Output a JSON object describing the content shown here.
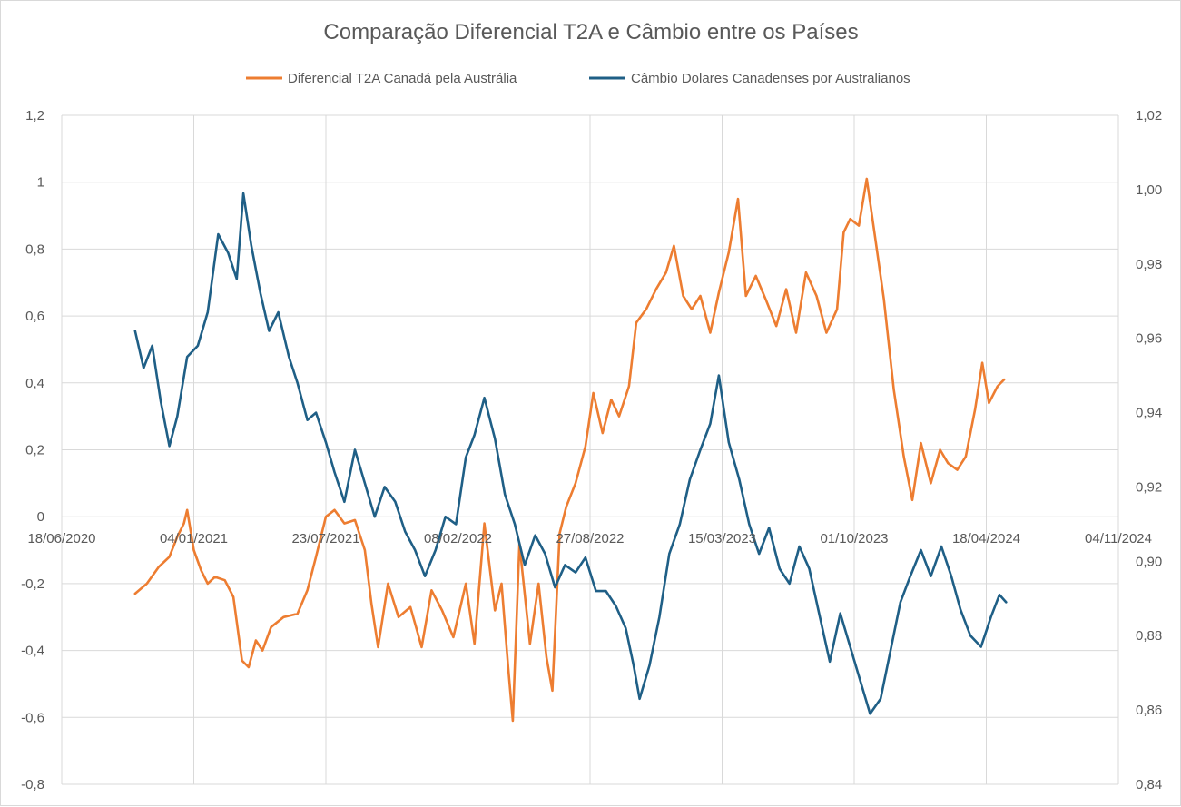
{
  "chart_data": {
    "type": "line",
    "title": "Comparação Diferencial T2A e Câmbio entre os Países",
    "legend_position": "top",
    "grid": true,
    "x_axis": {
      "type": "date",
      "range": [
        "2020-06-18",
        "2024-11-04"
      ],
      "tick_labels": [
        "18/06/2020",
        "04/01/2021",
        "23/07/2021",
        "08/02/2022",
        "27/08/2022",
        "15/03/2023",
        "01/10/2023",
        "18/04/2024",
        "04/11/2024"
      ]
    },
    "y_axis_left": {
      "range": [
        -0.8,
        1.2
      ],
      "tick_labels": [
        "-0,8",
        "-0,6",
        "-0,4",
        "-0,2",
        "0",
        "0,2",
        "0,4",
        "0,6",
        "0,8",
        "1",
        "1,2"
      ]
    },
    "y_axis_right": {
      "range": [
        0.84,
        1.02
      ],
      "tick_labels": [
        "0,84",
        "0,86",
        "0,88",
        "0,90",
        "0,92",
        "0,94",
        "0,96",
        "0,98",
        "1,00",
        "1,02"
      ]
    },
    "series": [
      {
        "name": "Diferencial T2A Canadá pela Austrália",
        "color": "#ED7D31",
        "axis": "left",
        "points": [
          [
            "2020-10-07",
            -0.23
          ],
          [
            "2020-10-25",
            -0.2
          ],
          [
            "2020-11-12",
            -0.15
          ],
          [
            "2020-11-28",
            -0.12
          ],
          [
            "2020-12-10",
            -0.06
          ],
          [
            "2020-12-20",
            -0.02
          ],
          [
            "2020-12-25",
            0.02
          ],
          [
            "2021-01-04",
            -0.1
          ],
          [
            "2021-01-15",
            -0.16
          ],
          [
            "2021-01-25",
            -0.2
          ],
          [
            "2021-02-05",
            -0.18
          ],
          [
            "2021-02-20",
            -0.19
          ],
          [
            "2021-03-05",
            -0.24
          ],
          [
            "2021-03-18",
            -0.43
          ],
          [
            "2021-03-28",
            -0.45
          ],
          [
            "2021-04-08",
            -0.37
          ],
          [
            "2021-04-18",
            -0.4
          ],
          [
            "2021-05-01",
            -0.33
          ],
          [
            "2021-05-20",
            -0.3
          ],
          [
            "2021-06-10",
            -0.29
          ],
          [
            "2021-06-25",
            -0.22
          ],
          [
            "2021-07-08",
            -0.12
          ],
          [
            "2021-07-23",
            0.0
          ],
          [
            "2021-08-05",
            0.02
          ],
          [
            "2021-08-20",
            -0.02
          ],
          [
            "2021-09-05",
            -0.01
          ],
          [
            "2021-09-20",
            -0.1
          ],
          [
            "2021-09-30",
            -0.26
          ],
          [
            "2021-10-10",
            -0.39
          ],
          [
            "2021-10-25",
            -0.2
          ],
          [
            "2021-11-10",
            -0.3
          ],
          [
            "2021-11-28",
            -0.27
          ],
          [
            "2021-12-15",
            -0.39
          ],
          [
            "2021-12-30",
            -0.22
          ],
          [
            "2022-01-15",
            -0.28
          ],
          [
            "2022-02-01",
            -0.36
          ],
          [
            "2022-02-20",
            -0.2
          ],
          [
            "2022-03-05",
            -0.38
          ],
          [
            "2022-03-20",
            -0.02
          ],
          [
            "2022-04-05",
            -0.28
          ],
          [
            "2022-04-15",
            -0.2
          ],
          [
            "2022-04-25",
            -0.45
          ],
          [
            "2022-05-02",
            -0.61
          ],
          [
            "2022-05-12",
            -0.08
          ],
          [
            "2022-05-28",
            -0.38
          ],
          [
            "2022-06-10",
            -0.2
          ],
          [
            "2022-06-22",
            -0.42
          ],
          [
            "2022-07-01",
            -0.52
          ],
          [
            "2022-07-12",
            -0.05
          ],
          [
            "2022-07-22",
            0.03
          ],
          [
            "2022-08-05",
            0.1
          ],
          [
            "2022-08-20",
            0.21
          ],
          [
            "2022-09-01",
            0.37
          ],
          [
            "2022-09-15",
            0.25
          ],
          [
            "2022-09-28",
            0.35
          ],
          [
            "2022-10-10",
            0.3
          ],
          [
            "2022-10-25",
            0.39
          ],
          [
            "2022-11-05",
            0.58
          ],
          [
            "2022-11-20",
            0.62
          ],
          [
            "2022-12-05",
            0.68
          ],
          [
            "2022-12-20",
            0.73
          ],
          [
            "2023-01-01",
            0.81
          ],
          [
            "2023-01-15",
            0.66
          ],
          [
            "2023-01-28",
            0.62
          ],
          [
            "2023-02-10",
            0.66
          ],
          [
            "2023-02-25",
            0.55
          ],
          [
            "2023-03-10",
            0.67
          ],
          [
            "2023-03-25",
            0.79
          ],
          [
            "2023-04-08",
            0.95
          ],
          [
            "2023-04-20",
            0.66
          ],
          [
            "2023-05-05",
            0.72
          ],
          [
            "2023-05-20",
            0.65
          ],
          [
            "2023-06-05",
            0.57
          ],
          [
            "2023-06-20",
            0.68
          ],
          [
            "2023-07-05",
            0.55
          ],
          [
            "2023-07-20",
            0.73
          ],
          [
            "2023-08-05",
            0.66
          ],
          [
            "2023-08-20",
            0.55
          ],
          [
            "2023-09-05",
            0.62
          ],
          [
            "2023-09-15",
            0.85
          ],
          [
            "2023-09-25",
            0.89
          ],
          [
            "2023-10-08",
            0.87
          ],
          [
            "2023-10-20",
            1.01
          ],
          [
            "2023-11-02",
            0.83
          ],
          [
            "2023-11-15",
            0.65
          ],
          [
            "2023-11-30",
            0.38
          ],
          [
            "2023-12-15",
            0.18
          ],
          [
            "2023-12-28",
            0.05
          ],
          [
            "2024-01-10",
            0.22
          ],
          [
            "2024-01-25",
            0.1
          ],
          [
            "2024-02-08",
            0.2
          ],
          [
            "2024-02-20",
            0.16
          ],
          [
            "2024-03-05",
            0.14
          ],
          [
            "2024-03-18",
            0.18
          ],
          [
            "2024-04-01",
            0.32
          ],
          [
            "2024-04-12",
            0.46
          ],
          [
            "2024-04-22",
            0.34
          ],
          [
            "2024-05-05",
            0.39
          ],
          [
            "2024-05-15",
            0.41
          ]
        ]
      },
      {
        "name": "Câmbio Dolares Canadenses por Australianos",
        "color": "#1F5F86",
        "axis": "right",
        "points": [
          [
            "2020-10-07",
            0.962
          ],
          [
            "2020-10-20",
            0.952
          ],
          [
            "2020-11-02",
            0.958
          ],
          [
            "2020-11-15",
            0.943
          ],
          [
            "2020-11-28",
            0.931
          ],
          [
            "2020-12-10",
            0.939
          ],
          [
            "2020-12-25",
            0.955
          ],
          [
            "2021-01-10",
            0.958
          ],
          [
            "2021-01-25",
            0.967
          ],
          [
            "2021-02-10",
            0.988
          ],
          [
            "2021-02-25",
            0.983
          ],
          [
            "2021-03-10",
            0.976
          ],
          [
            "2021-03-20",
            0.999
          ],
          [
            "2021-04-01",
            0.985
          ],
          [
            "2021-04-15",
            0.972
          ],
          [
            "2021-04-28",
            0.962
          ],
          [
            "2021-05-12",
            0.967
          ],
          [
            "2021-05-28",
            0.955
          ],
          [
            "2021-06-10",
            0.948
          ],
          [
            "2021-06-25",
            0.938
          ],
          [
            "2021-07-08",
            0.94
          ],
          [
            "2021-07-23",
            0.932
          ],
          [
            "2021-08-05",
            0.924
          ],
          [
            "2021-08-20",
            0.916
          ],
          [
            "2021-09-05",
            0.93
          ],
          [
            "2021-09-20",
            0.921
          ],
          [
            "2021-10-05",
            0.912
          ],
          [
            "2021-10-20",
            0.92
          ],
          [
            "2021-11-05",
            0.916
          ],
          [
            "2021-11-20",
            0.908
          ],
          [
            "2021-12-05",
            0.903
          ],
          [
            "2021-12-20",
            0.896
          ],
          [
            "2022-01-05",
            0.903
          ],
          [
            "2022-01-20",
            0.912
          ],
          [
            "2022-02-05",
            0.91
          ],
          [
            "2022-02-20",
            0.928
          ],
          [
            "2022-03-05",
            0.934
          ],
          [
            "2022-03-20",
            0.944
          ],
          [
            "2022-04-05",
            0.933
          ],
          [
            "2022-04-20",
            0.918
          ],
          [
            "2022-05-05",
            0.91
          ],
          [
            "2022-05-20",
            0.899
          ],
          [
            "2022-06-05",
            0.907
          ],
          [
            "2022-06-20",
            0.902
          ],
          [
            "2022-07-05",
            0.893
          ],
          [
            "2022-07-20",
            0.899
          ],
          [
            "2022-08-05",
            0.897
          ],
          [
            "2022-08-20",
            0.901
          ],
          [
            "2022-09-05",
            0.892
          ],
          [
            "2022-09-20",
            0.892
          ],
          [
            "2022-10-05",
            0.888
          ],
          [
            "2022-10-20",
            0.882
          ],
          [
            "2022-11-01",
            0.872
          ],
          [
            "2022-11-10",
            0.863
          ],
          [
            "2022-11-25",
            0.872
          ],
          [
            "2022-12-10",
            0.885
          ],
          [
            "2022-12-25",
            0.902
          ],
          [
            "2023-01-10",
            0.91
          ],
          [
            "2023-01-25",
            0.922
          ],
          [
            "2023-02-10",
            0.93
          ],
          [
            "2023-02-25",
            0.937
          ],
          [
            "2023-03-10",
            0.95
          ],
          [
            "2023-03-25",
            0.932
          ],
          [
            "2023-04-10",
            0.922
          ],
          [
            "2023-04-25",
            0.91
          ],
          [
            "2023-05-10",
            0.902
          ],
          [
            "2023-05-25",
            0.909
          ],
          [
            "2023-06-10",
            0.898
          ],
          [
            "2023-06-25",
            0.894
          ],
          [
            "2023-07-10",
            0.904
          ],
          [
            "2023-07-25",
            0.898
          ],
          [
            "2023-08-10",
            0.885
          ],
          [
            "2023-08-25",
            0.873
          ],
          [
            "2023-09-10",
            0.886
          ],
          [
            "2023-09-25",
            0.877
          ],
          [
            "2023-10-10",
            0.868
          ],
          [
            "2023-10-25",
            0.859
          ],
          [
            "2023-11-10",
            0.863
          ],
          [
            "2023-11-25",
            0.876
          ],
          [
            "2023-12-10",
            0.889
          ],
          [
            "2023-12-25",
            0.896
          ],
          [
            "2024-01-10",
            0.903
          ],
          [
            "2024-01-25",
            0.896
          ],
          [
            "2024-02-10",
            0.904
          ],
          [
            "2024-02-25",
            0.896
          ],
          [
            "2024-03-10",
            0.887
          ],
          [
            "2024-03-25",
            0.88
          ],
          [
            "2024-04-10",
            0.877
          ],
          [
            "2024-04-25",
            0.885
          ],
          [
            "2024-05-08",
            0.891
          ],
          [
            "2024-05-18",
            0.889
          ]
        ]
      }
    ]
  }
}
